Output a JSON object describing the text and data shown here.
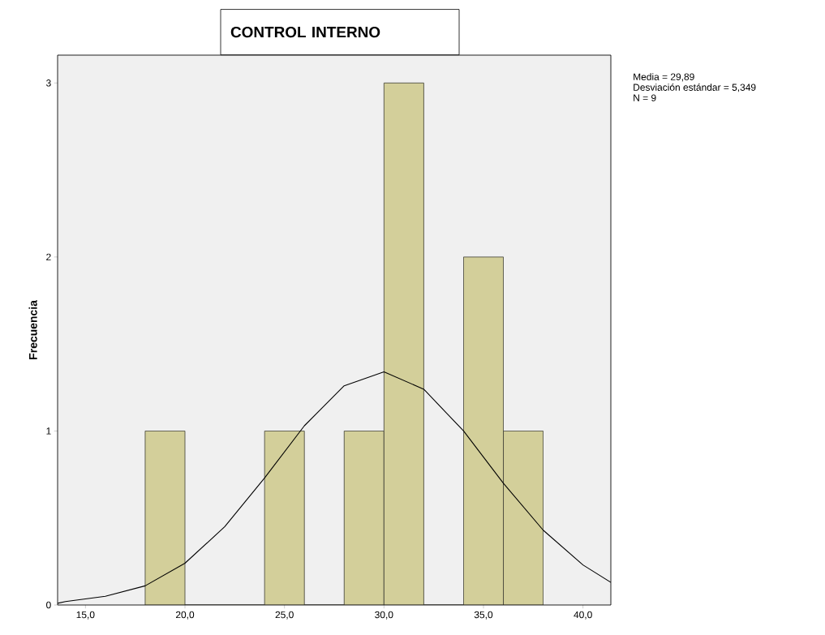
{
  "chart_data": {
    "type": "histogram",
    "title": "CONTROL INTERNO",
    "ylabel": "Frecuencia",
    "bins": [
      18,
      20,
      22,
      24,
      26,
      28,
      30,
      32,
      34,
      36,
      38
    ],
    "values": [
      1,
      0,
      0,
      1,
      0,
      1,
      3,
      0,
      2,
      1
    ],
    "color": "#d3cf9a",
    "series": [
      {
        "type": "line",
        "color": "#000000",
        "x": [
          13.6,
          14,
          16,
          18,
          20,
          22,
          24,
          26,
          28,
          30,
          32,
          34,
          36,
          38,
          40,
          41.4
        ],
        "values": [
          0.01,
          0.02,
          0.05,
          0.11,
          0.24,
          0.45,
          0.73,
          1.03,
          1.26,
          1.34,
          1.24,
          1.0,
          0.7,
          0.43,
          0.23,
          0.13
        ]
      }
    ],
    "xlim": [
      13.6,
      41.4
    ],
    "ylim": [
      0,
      3.16
    ],
    "xticks": [
      {
        "value": 15,
        "label": "15,0"
      },
      {
        "value": 20,
        "label": "20,0"
      },
      {
        "value": 25,
        "label": "25,0"
      },
      {
        "value": 30,
        "label": "30,0"
      },
      {
        "value": 35,
        "label": "35,0"
      },
      {
        "value": 40,
        "label": "40,0"
      }
    ],
    "yticks": [
      0,
      1,
      2,
      3
    ],
    "annotations": [
      "Media = 29,89",
      "Desviación estándar = 5,349",
      "N = 9"
    ]
  }
}
